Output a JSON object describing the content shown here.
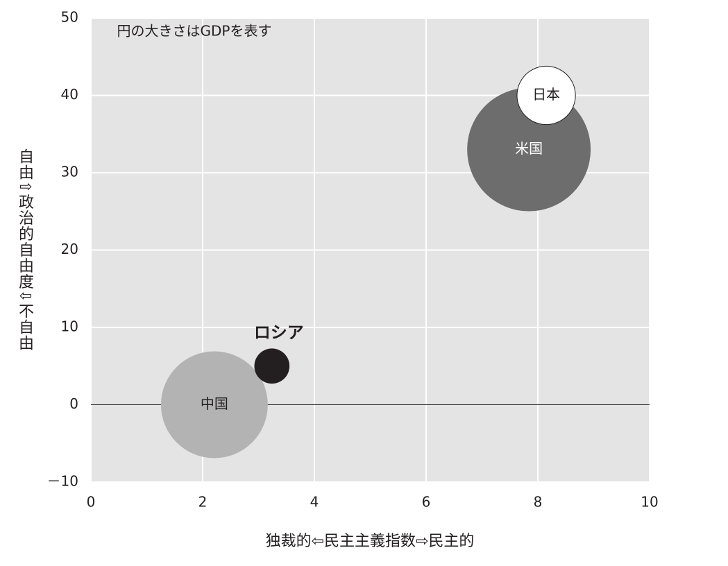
{
  "chart_data": {
    "type": "bubble",
    "annotation": "円の大きさはGDPを表す",
    "x_label": "独裁的⇦民主主義指数⇨民主的",
    "y_label": "自由⇧政治的自由度⇩不自由",
    "xlim": [
      0,
      10
    ],
    "xticks": [
      0,
      2,
      4,
      6,
      8,
      10
    ],
    "ylim": [
      -10,
      50
    ],
    "yticks": [
      {
        "value": -10,
        "label": "－10"
      },
      0,
      10,
      20,
      30,
      40,
      50
    ],
    "grid": true,
    "background": "#e4e4e4",
    "series": [
      {
        "name": "米国",
        "color": "#6d6d6d",
        "label_color": "#ffffff",
        "x": [
          7.84
        ],
        "values": [
          33
        ],
        "sizes": [
          21
        ]
      },
      {
        "name": "中国",
        "color": "#b3b3b3",
        "label_color": "#231f20",
        "x": [
          2.21
        ],
        "values": [
          0
        ],
        "sizes": [
          15.7
        ]
      },
      {
        "name": "日本",
        "color": "#ffffff",
        "label_color": "#231f20",
        "x": [
          8.15
        ],
        "values": [
          40
        ],
        "sizes": [
          4.7
        ]
      },
      {
        "name": "ロシア",
        "color": "#231f20",
        "label_color": "#231f20",
        "label_position": "above",
        "x": [
          3.24
        ],
        "values": [
          5
        ],
        "sizes": [
          1.7
        ]
      }
    ]
  }
}
